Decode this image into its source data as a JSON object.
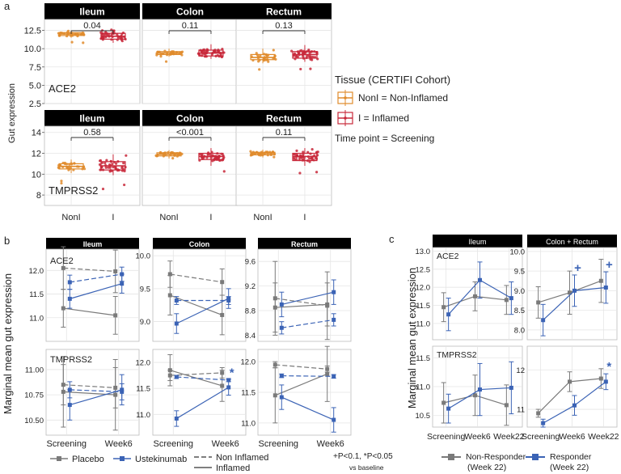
{
  "figure_labels": {
    "a": "a",
    "b": "b",
    "c": "c",
    "y_label_a": "Gut expression",
    "y_label_b": "Marginal mean gut expression",
    "y_label_c": "Marginal mean gut expression"
  },
  "legend_a": {
    "title": "Tissue (CERTIFI Cohort)",
    "noninflamed": "NonI = Non-Inflamed",
    "inflamed": "I = Inflamed",
    "timepoint": "Time point = Screening"
  },
  "legend_b": {
    "placebo": "Placebo",
    "ustekinumab": "Ustekinumab",
    "non_inflamed": "Non Inflamed",
    "inflamed": "Inflamed",
    "sig_note": "+P<0.1, *P<0.05",
    "sig_note2": "vs baseline"
  },
  "legend_c": {
    "nonresponder": "Non-Responder",
    "nonresponder2": "(Week 22)",
    "responder": "Responder",
    "responder2": "(Week 22)"
  },
  "colors": {
    "noninflamed": "#E08B2C",
    "inflamed": "#C8283A",
    "placebo": "#7A7A7A",
    "ustekinumab": "#3B63B5",
    "strip": "#000000",
    "grid": "#E5E5E5"
  },
  "chart_data": [
    {
      "panel": "a",
      "type": "boxplot",
      "gene": "ACE2",
      "ylim": [
        2.5,
        14
      ],
      "yticks": [
        "2.5",
        "5.0",
        "7.5",
        "10.0",
        "12.5"
      ],
      "ytick_values": [
        2.5,
        5.0,
        7.5,
        10.0,
        12.5
      ],
      "categories": [
        "NonI",
        "I"
      ],
      "facets": [
        {
          "name": "Ileum",
          "pvalue": "0.04",
          "noni": [
            11.5,
            11.8,
            12.0,
            12.2,
            12.5
          ],
          "i": [
            10.8,
            11.3,
            11.7,
            12.1,
            12.6
          ]
        },
        {
          "name": "Colon",
          "pvalue": "0.11",
          "noni": [
            8.9,
            9.2,
            9.4,
            9.6,
            10.0
          ],
          "i": [
            8.6,
            9.0,
            9.4,
            9.8,
            10.6
          ]
        },
        {
          "name": "Rectum",
          "pvalue": "0.13",
          "noni": [
            8.0,
            8.5,
            8.8,
            9.2,
            10.0
          ],
          "i": [
            8.2,
            8.7,
            9.2,
            9.6,
            10.5
          ]
        }
      ]
    },
    {
      "panel": "a",
      "type": "boxplot",
      "gene": "TMPRSS2",
      "ylim": [
        7,
        14.6
      ],
      "yticks": [
        "8",
        "10",
        "12",
        "14"
      ],
      "ytick_values": [
        8,
        10,
        12,
        14
      ],
      "categories": [
        "NonI",
        "I"
      ],
      "facets": [
        {
          "name": "Ileum",
          "pvalue": "0.58",
          "noni": [
            10.1,
            10.5,
            10.75,
            11.0,
            11.4
          ],
          "i": [
            9.9,
            10.4,
            10.8,
            11.2,
            11.9
          ]
        },
        {
          "name": "Colon",
          "pvalue": "<0.001",
          "noni": [
            11.5,
            11.75,
            11.9,
            12.05,
            12.3
          ],
          "i": [
            10.8,
            11.4,
            11.7,
            12.0,
            12.5
          ]
        },
        {
          "name": "Rectum",
          "pvalue": "0.11",
          "noni": [
            11.6,
            11.85,
            12.0,
            12.1,
            12.35
          ],
          "i": [
            10.8,
            11.3,
            11.7,
            12.0,
            12.5
          ]
        }
      ]
    },
    {
      "panel": "b",
      "type": "line",
      "gene": "ACE2",
      "x": [
        "Screening",
        "Week6"
      ],
      "facets": [
        {
          "name": "Ileum",
          "ylim": [
            10.5,
            12.45
          ],
          "yticks": [
            "11.0",
            "11.5",
            "12.0"
          ],
          "ytick_values": [
            11.0,
            11.5,
            12.0
          ],
          "series": [
            {
              "group": "Placebo",
              "state": "Non Inflamed",
              "values": [
                12.05,
                11.98
              ],
              "err": [
                0.45,
                0.45
              ],
              "sig": [
                "",
                ""
              ]
            },
            {
              "group": "Placebo",
              "state": "Inflamed",
              "values": [
                11.2,
                11.05
              ],
              "err": [
                0.4,
                0.4
              ],
              "sig": [
                "",
                ""
              ]
            },
            {
              "group": "Ustekinumab",
              "state": "Non Inflamed",
              "values": [
                11.75,
                11.92
              ],
              "err": [
                0.15,
                0.15
              ],
              "sig": [
                "",
                ""
              ]
            },
            {
              "group": "Ustekinumab",
              "state": "Inflamed",
              "values": [
                11.4,
                11.72
              ],
              "err": [
                0.2,
                0.2
              ],
              "sig": [
                "",
                ""
              ]
            }
          ]
        },
        {
          "name": "Colon",
          "ylim": [
            8.7,
            10.1
          ],
          "yticks": [
            "9.0",
            "9.5",
            "10.0"
          ],
          "ytick_values": [
            9.0,
            9.5,
            10.0
          ],
          "series": [
            {
              "group": "Placebo",
              "state": "Non Inflamed",
              "values": [
                9.72,
                9.6
              ],
              "err": [
                0.2,
                0.2
              ],
              "sig": [
                "",
                ""
              ]
            },
            {
              "group": "Placebo",
              "state": "Inflamed",
              "values": [
                9.4,
                9.1
              ],
              "err": [
                0.3,
                0.3
              ],
              "sig": [
                "",
                ""
              ]
            },
            {
              "group": "Ustekinumab",
              "state": "Non Inflamed",
              "values": [
                9.32,
                9.32
              ],
              "err": [
                0.06,
                0.06
              ],
              "sig": [
                "",
                ""
              ]
            },
            {
              "group": "Ustekinumab",
              "state": "Inflamed",
              "values": [
                8.97,
                9.35
              ],
              "err": [
                0.15,
                0.15
              ],
              "sig": [
                "",
                ""
              ]
            }
          ]
        },
        {
          "name": "Rectum",
          "ylim": [
            8.3,
            9.8
          ],
          "yticks": [
            "8.4",
            "8.8",
            "9.2",
            "9.6"
          ],
          "ytick_values": [
            8.4,
            8.8,
            9.2,
            9.6
          ],
          "series": [
            {
              "group": "Placebo",
              "state": "Non Inflamed",
              "values": [
                9.0,
                8.88
              ],
              "err": [
                0.6,
                0.55
              ],
              "sig": [
                "",
                ""
              ]
            },
            {
              "group": "Placebo",
              "state": "Inflamed",
              "values": [
                8.85,
                8.9
              ],
              "err": [
                0.4,
                0.35
              ],
              "sig": [
                "",
                ""
              ]
            },
            {
              "group": "Ustekinumab",
              "state": "Non Inflamed",
              "values": [
                8.52,
                8.65
              ],
              "err": [
                0.1,
                0.1
              ],
              "sig": [
                "",
                ""
              ]
            },
            {
              "group": "Ustekinumab",
              "state": "Inflamed",
              "values": [
                8.9,
                9.1
              ],
              "err": [
                0.2,
                0.2
              ],
              "sig": [
                "",
                ""
              ]
            }
          ]
        }
      ]
    },
    {
      "panel": "b",
      "type": "line",
      "gene": "TMPRSS2",
      "x": [
        "Screening",
        "Week6"
      ],
      "facets": [
        {
          "name": "Ileum",
          "ylim": [
            10.35,
            11.2
          ],
          "yticks": [
            "10.50",
            "10.75",
            "11.00"
          ],
          "ytick_values": [
            10.5,
            10.75,
            11.0
          ],
          "series": [
            {
              "group": "Placebo",
              "state": "Non Inflamed",
              "values": [
                10.85,
                10.82
              ],
              "err": [
                0.2,
                0.2
              ],
              "sig": [
                "",
                ""
              ]
            },
            {
              "group": "Placebo",
              "state": "Inflamed",
              "values": [
                10.78,
                10.75
              ],
              "err": [
                0.35,
                0.35
              ],
              "sig": [
                "",
                ""
              ]
            },
            {
              "group": "Ustekinumab",
              "state": "Non Inflamed",
              "values": [
                10.8,
                10.78
              ],
              "err": [
                0.08,
                0.08
              ],
              "sig": [
                "",
                ""
              ]
            },
            {
              "group": "Ustekinumab",
              "state": "Inflamed",
              "values": [
                10.65,
                10.8
              ],
              "err": [
                0.15,
                0.15
              ],
              "sig": [
                "",
                ""
              ]
            }
          ]
        },
        {
          "name": "Colon",
          "ylim": [
            10.6,
            12.25
          ],
          "yticks": [
            "11.0",
            "11.5",
            "12.0"
          ],
          "ytick_values": [
            11.0,
            11.5,
            12.0
          ],
          "series": [
            {
              "group": "Placebo",
              "state": "Non Inflamed",
              "values": [
                11.75,
                11.8
              ],
              "err": [
                0.1,
                0.1
              ],
              "sig": [
                "",
                ""
              ]
            },
            {
              "group": "Placebo",
              "state": "Inflamed",
              "values": [
                11.85,
                11.55
              ],
              "err": [
                0.3,
                0.3
              ],
              "sig": [
                "",
                ""
              ]
            },
            {
              "group": "Ustekinumab",
              "state": "Non Inflamed",
              "values": [
                11.72,
                11.66
              ],
              "err": [
                0.03,
                0.03
              ],
              "sig": [
                "",
                ""
              ]
            },
            {
              "group": "Ustekinumab",
              "state": "Inflamed",
              "values": [
                10.92,
                11.52
              ],
              "err": [
                0.15,
                0.15
              ],
              "sig": [
                "",
                "*"
              ]
            }
          ]
        },
        {
          "name": "Rectum",
          "ylim": [
            10.8,
            12.2
          ],
          "yticks": [
            "11.0",
            "11.5",
            "12.0"
          ],
          "ytick_values": [
            11.0,
            11.5,
            12.0
          ],
          "series": [
            {
              "group": "Placebo",
              "state": "Non Inflamed",
              "values": [
                11.95,
                11.88
              ],
              "err": [
                0.05,
                0.05
              ],
              "sig": [
                "",
                ""
              ]
            },
            {
              "group": "Placebo",
              "state": "Inflamed",
              "values": [
                11.45,
                11.8
              ],
              "err": [
                0.45,
                0.45
              ],
              "sig": [
                "",
                ""
              ]
            },
            {
              "group": "Ustekinumab",
              "state": "Non Inflamed",
              "values": [
                11.77,
                11.76
              ],
              "err": [
                0.03,
                0.03
              ],
              "sig": [
                "",
                ""
              ]
            },
            {
              "group": "Ustekinumab",
              "state": "Inflamed",
              "values": [
                11.42,
                11.05
              ],
              "err": [
                0.2,
                0.2
              ],
              "sig": [
                "",
                ""
              ]
            }
          ]
        }
      ]
    },
    {
      "panel": "c",
      "type": "line",
      "gene": "ACE2",
      "x": [
        "Screening",
        "Week6",
        "Week22"
      ],
      "facets": [
        {
          "name": "Ileum",
          "ylim": [
            10.55,
            13.1
          ],
          "yticks": [
            "11.0",
            "11.5",
            "12.0",
            "12.5",
            "13.0"
          ],
          "ytick_values": [
            11.0,
            11.5,
            12.0,
            12.5,
            13.0
          ],
          "series": [
            {
              "group": "Non-Responder",
              "values": [
                11.45,
                11.75,
                11.65
              ],
              "err": [
                0.4,
                0.4,
                0.4
              ],
              "sig": [
                "",
                "",
                ""
              ]
            },
            {
              "group": "Responder",
              "values": [
                11.25,
                12.2,
                11.7
              ],
              "err": [
                0.45,
                0.5,
                0.45
              ],
              "sig": [
                "",
                "",
                ""
              ]
            }
          ]
        },
        {
          "name": "Colon + Rectum",
          "ylim": [
            7.75,
            10.1
          ],
          "yticks": [
            "8.0",
            "8.5",
            "9.0",
            "9.5",
            "10.0"
          ],
          "ytick_values": [
            8.0,
            8.5,
            9.0,
            9.5,
            10.0
          ],
          "series": [
            {
              "group": "Non-Responder",
              "values": [
                8.7,
                8.95,
                9.25
              ],
              "err": [
                0.4,
                0.55,
                0.55
              ],
              "sig": [
                "",
                "",
                ""
              ]
            },
            {
              "group": "Responder",
              "values": [
                8.25,
                9.0,
                9.08
              ],
              "err": [
                0.4,
                0.4,
                0.4
              ],
              "sig": [
                "",
                "+",
                "+"
              ]
            }
          ]
        }
      ]
    },
    {
      "panel": "c",
      "type": "line",
      "gene": "TMPRSS2",
      "x": [
        "Screening",
        "Week6",
        "Week22"
      ],
      "facets": [
        {
          "name": "Ileum",
          "ylim": [
            10.3,
            11.7
          ],
          "yticks": [
            "10.5",
            "11.0",
            "11.5"
          ],
          "ytick_values": [
            10.5,
            11.0,
            11.5
          ],
          "series": [
            {
              "group": "Non-Responder",
              "values": [
                10.72,
                10.85,
                10.68
              ],
              "err": [
                0.35,
                0.35,
                0.35
              ],
              "sig": [
                "",
                "",
                ""
              ]
            },
            {
              "group": "Responder",
              "values": [
                10.62,
                10.95,
                10.98
              ],
              "err": [
                0.25,
                0.45,
                0.45
              ],
              "sig": [
                "",
                "",
                ""
              ]
            }
          ]
        },
        {
          "name": "Colon + Rectum",
          "ylim": [
            10.55,
            12.6
          ],
          "yticks": [
            "11",
            "12"
          ],
          "ytick_values": [
            11,
            12
          ],
          "series": [
            {
              "group": "Non-Responder",
              "values": [
                10.9,
                11.7,
                11.78
              ],
              "err": [
                0.1,
                0.25,
                0.25
              ],
              "sig": [
                "",
                "",
                ""
              ]
            },
            {
              "group": "Responder",
              "values": [
                10.65,
                11.1,
                11.7
              ],
              "err": [
                0.1,
                0.25,
                0.2
              ],
              "sig": [
                "",
                "",
                "*"
              ]
            }
          ]
        }
      ]
    }
  ]
}
